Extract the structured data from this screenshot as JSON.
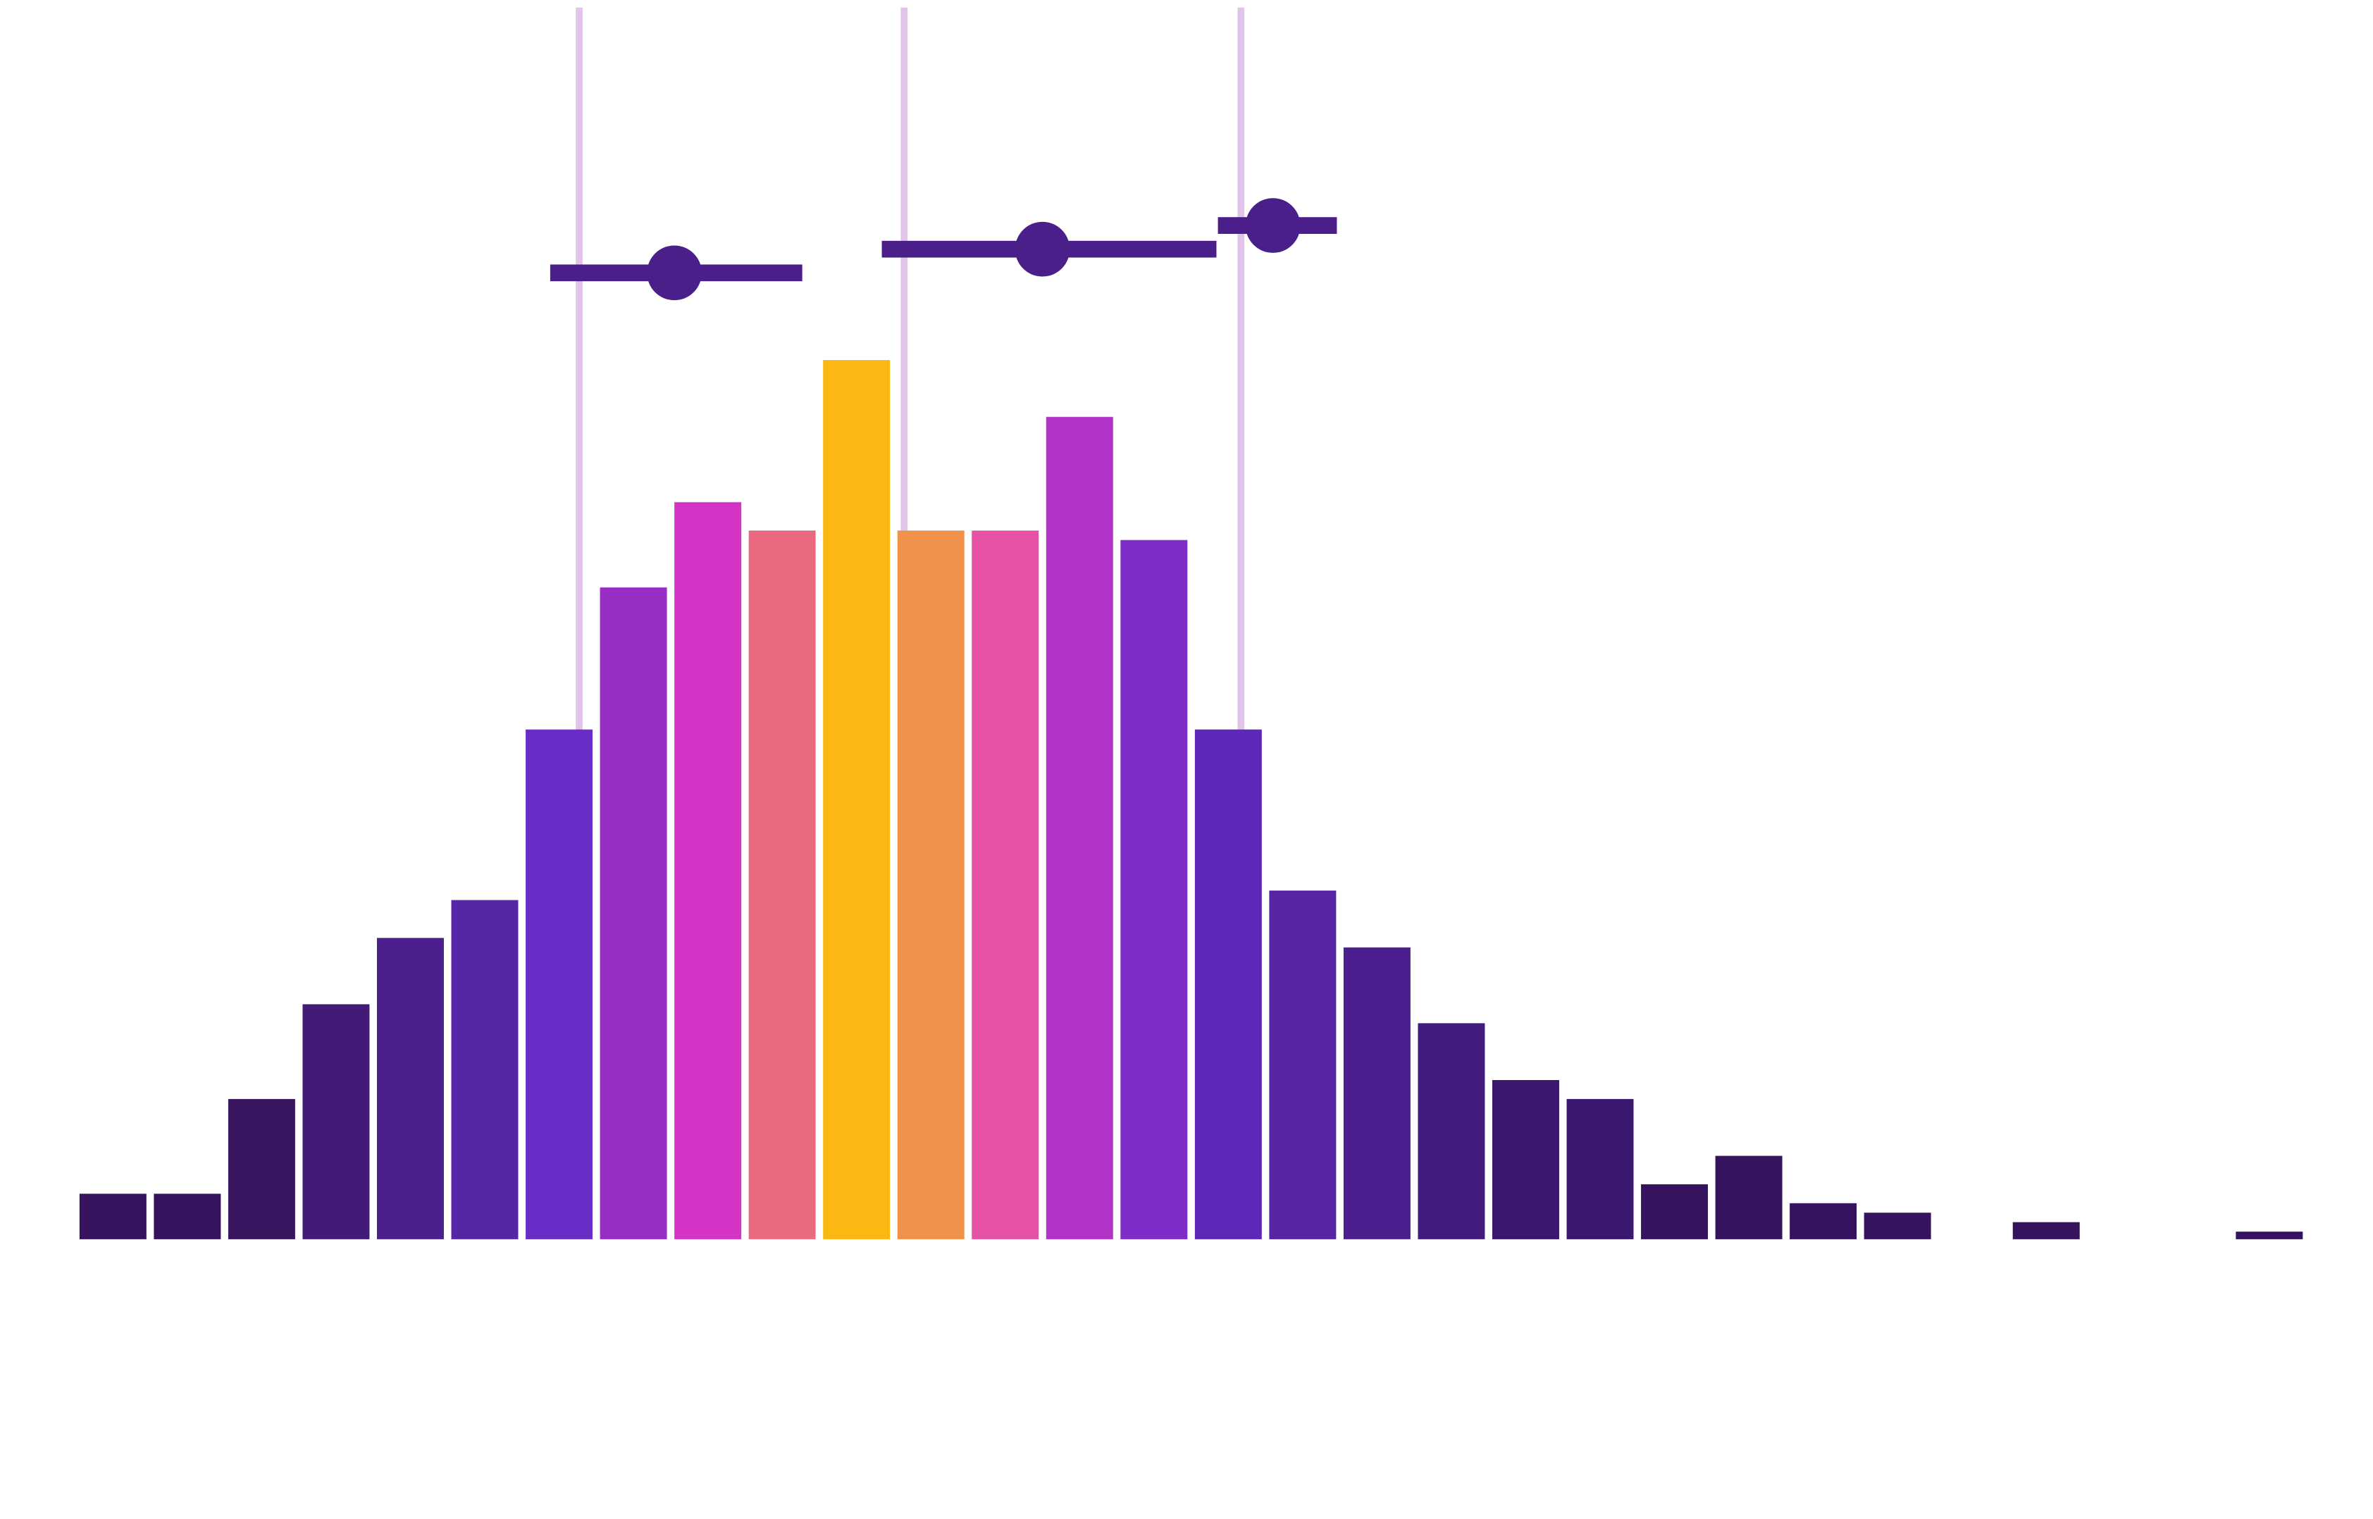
{
  "chart_data": {
    "type": "bar",
    "title": "",
    "xlabel": "",
    "ylabel": "",
    "grid": false,
    "legend": "none",
    "bar_count": 31,
    "values": [
      4.8,
      4.8,
      14.8,
      24.8,
      31.8,
      35.8,
      53.8,
      68.8,
      77.8,
      74.8,
      92.8,
      74.8,
      74.8,
      86.8,
      73.8,
      53.8,
      36.8,
      30.8,
      22.8,
      16.8,
      14.8,
      5.8,
      8.8,
      3.8,
      2.8,
      0,
      1.8,
      0,
      0,
      0.8,
      0
    ],
    "ylim": [
      0,
      130
    ],
    "colors": [
      "#35135f",
      "#35135f",
      "#37165f",
      "#421b78",
      "#4b1f8c",
      "#5526a6",
      "#6a2cc7",
      "#982ec6",
      "#d433c6",
      "#e96a80",
      "#fcb812",
      "#f0924b",
      "#e652a6",
      "#b233c7",
      "#7e2cc7",
      "#5d27b7",
      "#5525a4",
      "#4b1f8d",
      "#421b7e",
      "#3b1870",
      "#3b1870",
      "#35135f",
      "#35135f",
      "#35135f",
      "#35135f",
      "#35135f",
      "#35135f",
      "#35135f",
      "#35135f",
      "#35135f",
      "#35135f"
    ],
    "reference_line_color": "#e2c3ea",
    "reference_lines": [
      6.72,
      11.09,
      15.62
    ],
    "intervals": [
      {
        "center": 8.0,
        "low": 6.33,
        "high": 9.72,
        "y": 102
      },
      {
        "center": 12.95,
        "low": 10.79,
        "high": 15.29,
        "y": 104.5
      },
      {
        "center": 16.05,
        "low": 15.31,
        "high": 16.91,
        "y": 107
      },
      {
        "color": "#4a1f8a"
      }
    ]
  }
}
